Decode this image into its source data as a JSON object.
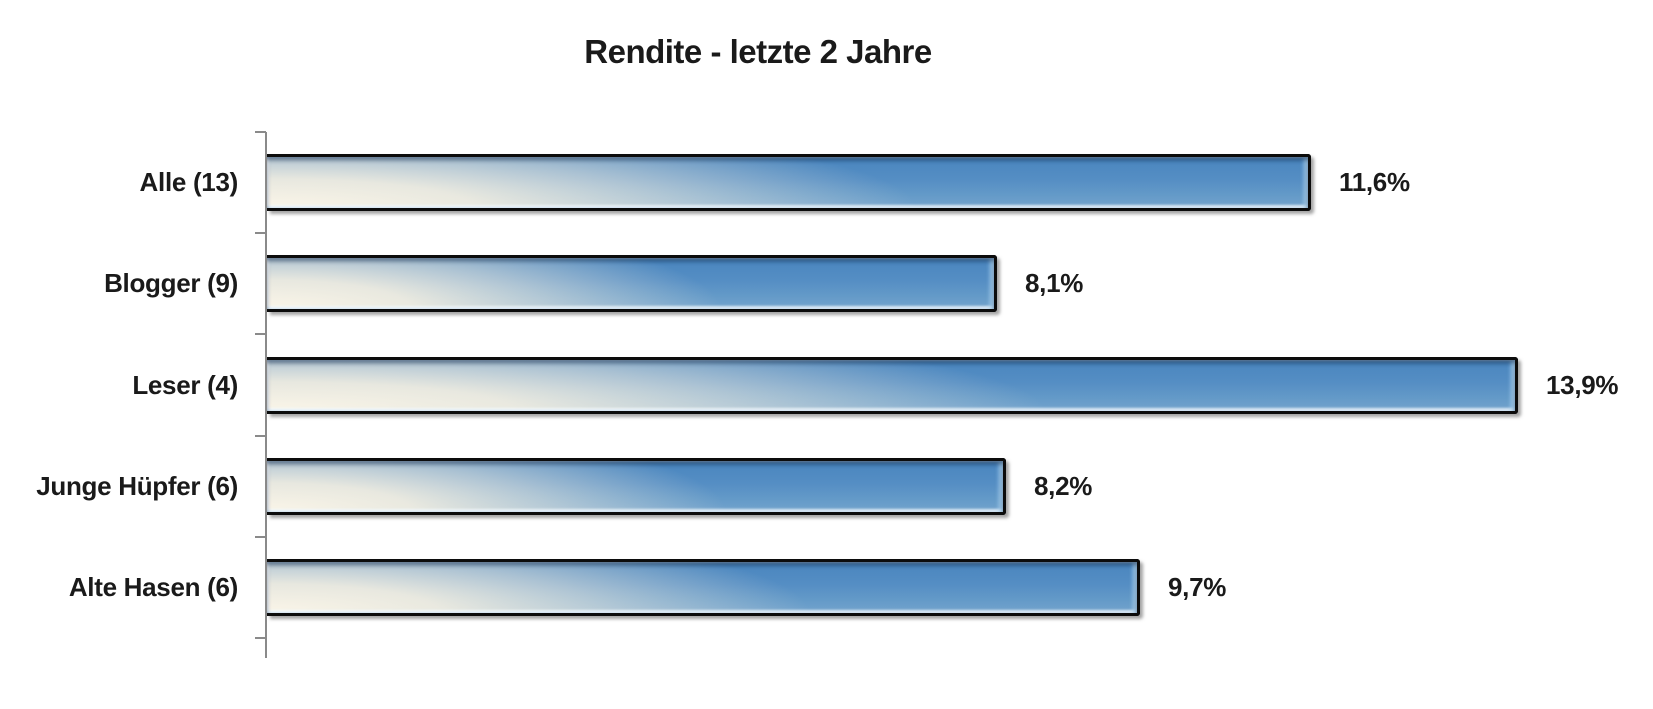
{
  "chart_data": {
    "type": "bar",
    "orientation": "horizontal",
    "title": "Rendite - letzte 2 Jahre",
    "categories": [
      "Alle (13)",
      "Blogger (9)",
      "Leser (4)",
      "Junge Hüpfer (6)",
      "Alte Hasen (6)"
    ],
    "values": [
      11.6,
      8.1,
      13.9,
      8.2,
      9.7
    ],
    "value_labels": [
      "11,6%",
      "8,1%",
      "13,9%",
      "8,2%",
      "9,7%"
    ],
    "xlabel": "",
    "ylabel": "",
    "xlim": [
      0,
      15.4
    ],
    "grid": false,
    "legend": false,
    "value_label_position": "outside-end",
    "colors": {
      "bar_top": "#4a86bf",
      "bar_body": "#568dc3",
      "bar_bottom_right": "#6fa0ca",
      "bar_highlight_cream": "#f8f2e3",
      "bar_border": "#0c0c0c",
      "axis": "#8a8a8a",
      "text": "#1a1a1a",
      "background": "#ffffff"
    }
  }
}
